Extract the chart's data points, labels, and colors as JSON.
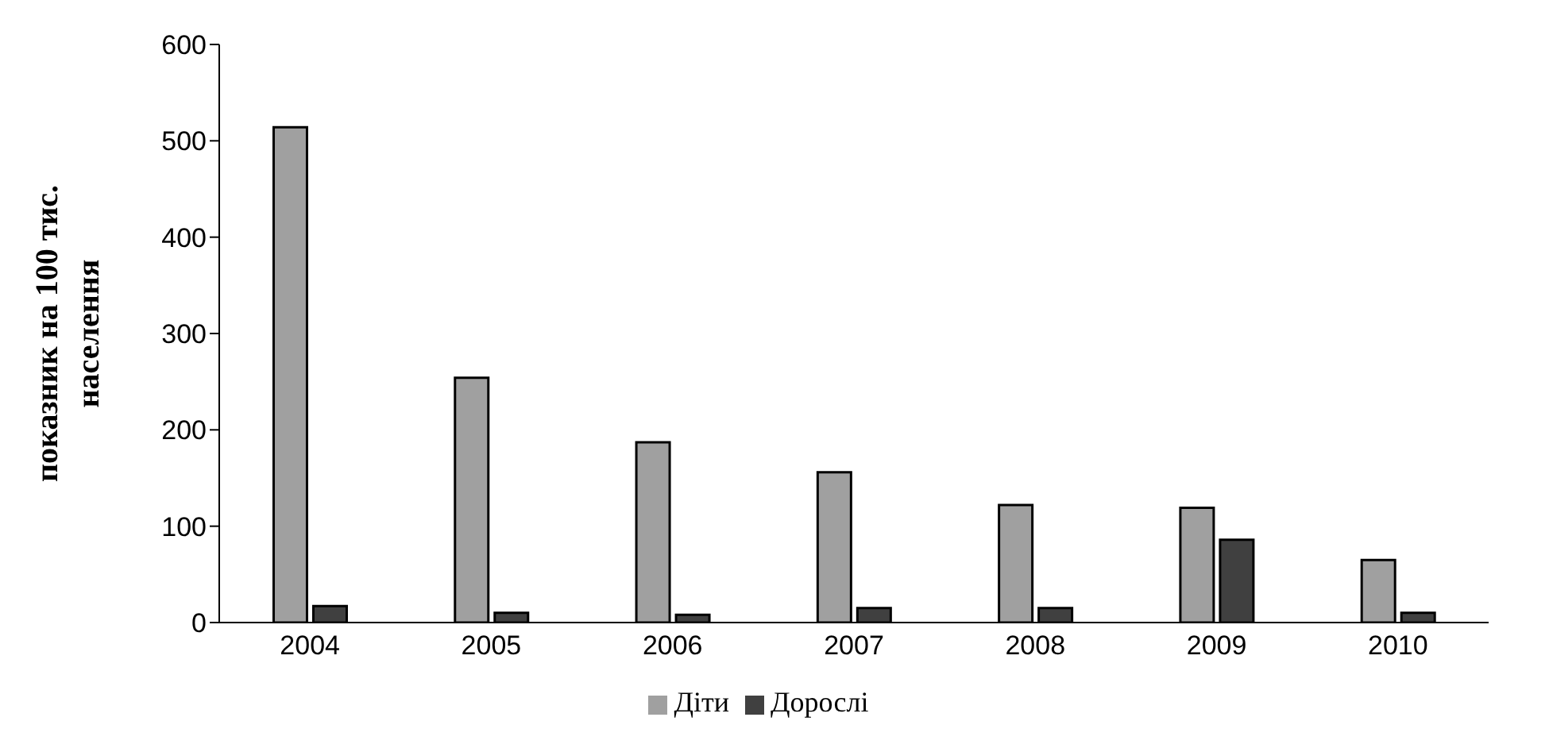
{
  "chart_data": {
    "type": "bar",
    "ylabel": "показник на 100 тис. населення",
    "categories": [
      "2004",
      "2005",
      "2006",
      "2007",
      "2008",
      "2009",
      "2010"
    ],
    "series": [
      {
        "name": "Діти",
        "color": "#a0a0a0",
        "values": [
          514,
          254,
          187,
          156,
          122,
          119,
          65
        ]
      },
      {
        "name": "Дорослі",
        "color": "#404040",
        "values": [
          17,
          10,
          8,
          15,
          15,
          86,
          10
        ]
      }
    ],
    "ylim": [
      0,
      600
    ],
    "yticks": [
      0,
      100,
      200,
      300,
      400,
      500,
      600
    ],
    "grid": false,
    "legend": "bottom"
  }
}
